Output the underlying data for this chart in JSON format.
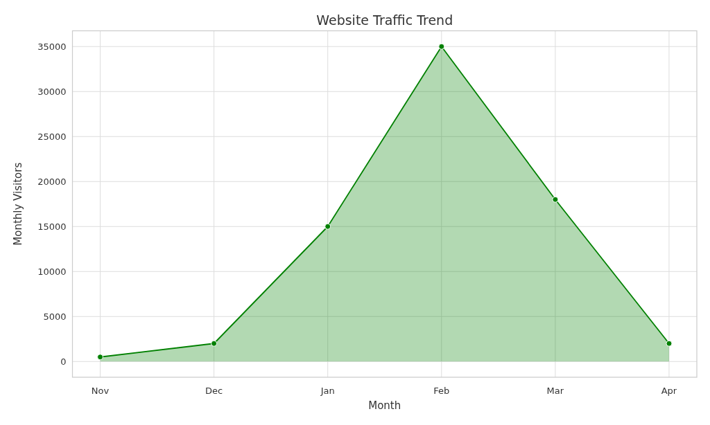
{
  "chart_data": {
    "type": "area",
    "title": "Website Traffic Trend",
    "xlabel": "Month",
    "ylabel": "Monthly Visitors",
    "categories": [
      "Nov",
      "Dec",
      "Jan",
      "Feb",
      "Mar",
      "Apr"
    ],
    "series": [
      {
        "color": "#008000",
        "values": [
          500,
          2000,
          15000,
          35000,
          18000,
          2000
        ]
      }
    ],
    "ylim": [
      -1750,
      36750
    ],
    "yticks": [
      0,
      5000,
      10000,
      15000,
      20000,
      25000,
      30000,
      35000
    ],
    "grid": true,
    "marker": "circle",
    "line_style": "solid"
  }
}
